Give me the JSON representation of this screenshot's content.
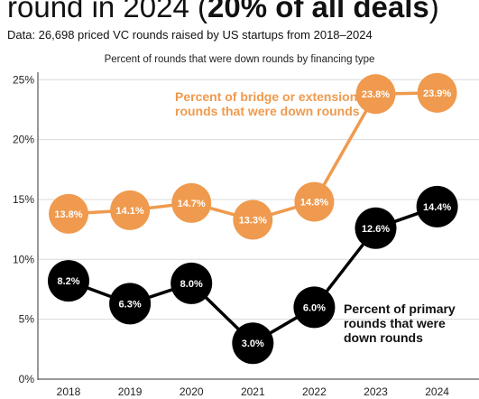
{
  "header": {
    "headline_prefix": "round in 2024 (",
    "headline_bold": "20% of all deals",
    "headline_suffix": ")",
    "data_note": "Data: 26,698 priced VC rounds raised by US startups from 2018–2024"
  },
  "colors": {
    "bridge": "#ef9a4e",
    "primary": "#000000",
    "grid": "#d9d9d9",
    "axis": "#333333"
  },
  "chart_data": {
    "type": "line",
    "title": "Percent of rounds that were down rounds by financing type",
    "x": [
      "2018",
      "2019",
      "2020",
      "2021",
      "2022",
      "2023",
      "2024"
    ],
    "ylim": [
      0,
      26
    ],
    "yticks": [
      "0%",
      "5%",
      "10%",
      "15%",
      "20%",
      "25%"
    ],
    "ytick_values": [
      0,
      5,
      10,
      15,
      20,
      25
    ],
    "grid": true,
    "series": [
      {
        "name": "Percent of bridge or extension rounds that were down rounds",
        "values": [
          13.8,
          14.1,
          14.7,
          13.3,
          14.8,
          23.8,
          23.9
        ],
        "labels": [
          "13.8%",
          "14.1%",
          "14.7%",
          "13.3%",
          "14.8%",
          "23.8%",
          "23.9%"
        ],
        "color": "#ef9a4e"
      },
      {
        "name": "Percent of primary rounds that were down rounds",
        "values": [
          8.2,
          6.3,
          8.0,
          3.0,
          6.0,
          12.6,
          14.4
        ],
        "labels": [
          "8.2%",
          "6.3%",
          "8.0%",
          "3.0%",
          "6.0%",
          "12.6%",
          "14.4%"
        ],
        "color": "#000000"
      }
    ],
    "annotations": [
      {
        "series": 0,
        "lines": [
          "Percent of bridge or extension",
          "rounds that were down rounds"
        ]
      },
      {
        "series": 1,
        "lines": [
          "Percent of primary",
          "rounds that were",
          "down rounds"
        ]
      }
    ]
  }
}
